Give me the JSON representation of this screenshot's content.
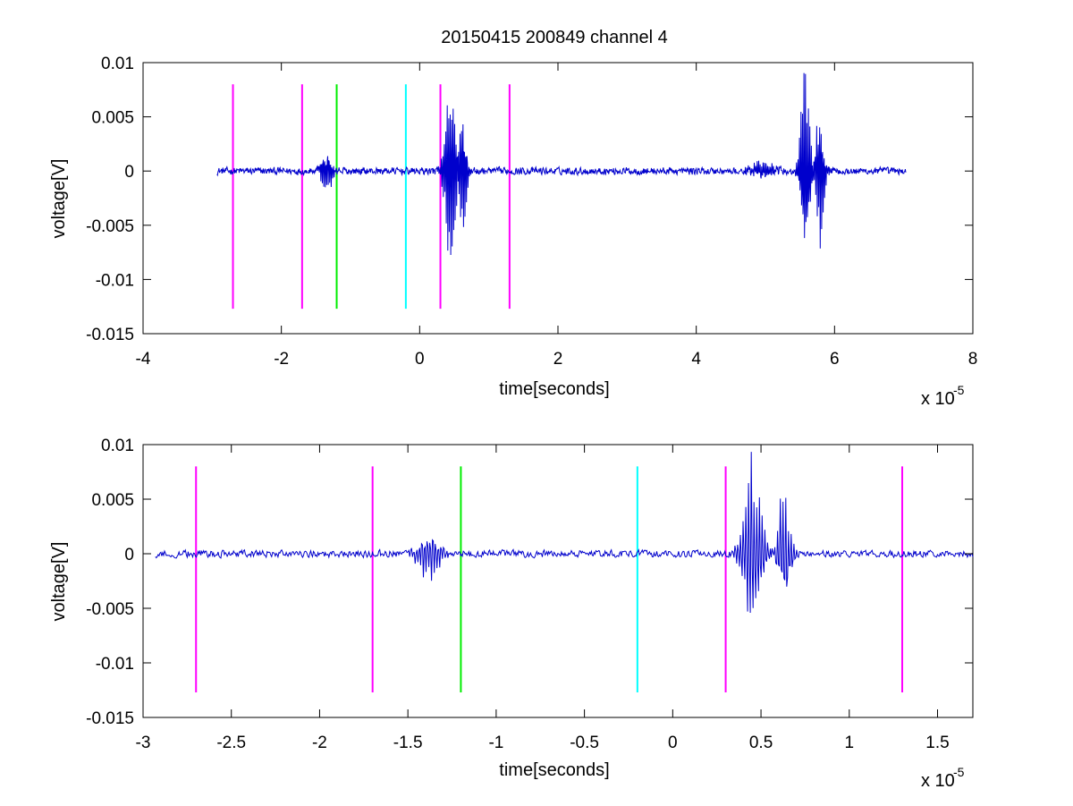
{
  "figure": {
    "title": "20150415 200849 channel 4"
  },
  "chart_data": [
    {
      "type": "line",
      "title": "20150415 200849 channel 4",
      "xlabel": "time[seconds]",
      "ylabel": "voltage[V]",
      "x_exponent_label": "x 10",
      "x_exponent": "-5",
      "xlim": [
        -4,
        8
      ],
      "ylim": [
        -0.015,
        0.01
      ],
      "xticks": [
        -4,
        -2,
        0,
        2,
        4,
        6,
        8
      ],
      "xtick_labels": [
        "-4",
        "-2",
        "0",
        "2",
        "4",
        "6",
        "8"
      ],
      "yticks": [
        -0.015,
        -0.01,
        -0.005,
        0,
        0.005,
        0.01
      ],
      "ytick_labels": [
        "-0.015",
        "-0.01",
        "-0.005",
        "0",
        "0.005",
        "0.01"
      ],
      "series": [
        {
          "color": "#0000cc",
          "signal": {
            "x_start": -2.93,
            "x_end": 7.03
          }
        }
      ],
      "markers": [
        {
          "x": -2.7,
          "color": "#ff00ff",
          "y_top": 0.008,
          "y_bottom": -0.0127
        },
        {
          "x": -1.7,
          "color": "#ff00ff",
          "y_top": 0.008,
          "y_bottom": -0.0127
        },
        {
          "x": -1.2,
          "color": "#00ee00",
          "y_top": 0.008,
          "y_bottom": -0.0127
        },
        {
          "x": -0.2,
          "color": "#00ffff",
          "y_top": 0.008,
          "y_bottom": -0.0127
        },
        {
          "x": 0.3,
          "color": "#ff00ff",
          "y_top": 0.008,
          "y_bottom": -0.0127
        },
        {
          "x": 1.3,
          "color": "#ff00ff",
          "y_top": 0.008,
          "y_bottom": -0.0127
        }
      ],
      "bursts": [
        {
          "center": -1.35,
          "width": 0.12,
          "amp": 0.0018
        },
        {
          "center": 0.45,
          "width": 0.12,
          "amp": 0.0075
        },
        {
          "center": 0.62,
          "width": 0.08,
          "amp": 0.0055
        },
        {
          "center": 4.95,
          "width": 0.25,
          "amp": 0.0007
        },
        {
          "center": 5.58,
          "width": 0.1,
          "amp": 0.0075
        },
        {
          "center": 5.78,
          "width": 0.1,
          "amp": 0.0055
        }
      ]
    },
    {
      "type": "line",
      "xlabel": "time[seconds]",
      "ylabel": "voltage[V]",
      "x_exponent_label": "x 10",
      "x_exponent": "-5",
      "xlim": [
        -3.0,
        1.7
      ],
      "ylim": [
        -0.015,
        0.01
      ],
      "xticks": [
        -3,
        -2.5,
        -2,
        -1.5,
        -1,
        -0.5,
        0,
        0.5,
        1,
        1.5
      ],
      "xtick_labels": [
        "-3",
        "-2.5",
        "-2",
        "-1.5",
        "-1",
        "-0.5",
        "0",
        "0.5",
        "1",
        "1.5"
      ],
      "yticks": [
        -0.015,
        -0.01,
        -0.005,
        0,
        0.005,
        0.01
      ],
      "ytick_labels": [
        "-0.015",
        "-0.01",
        "-0.005",
        "0",
        "0.005",
        "0.01"
      ],
      "series": [
        {
          "color": "#0000cc",
          "signal": {
            "x_start": -2.93,
            "x_end": 1.7
          }
        }
      ],
      "markers": [
        {
          "x": -2.7,
          "color": "#ff00ff",
          "y_top": 0.008,
          "y_bottom": -0.0127
        },
        {
          "x": -1.7,
          "color": "#ff00ff",
          "y_top": 0.008,
          "y_bottom": -0.0127
        },
        {
          "x": -1.2,
          "color": "#00ee00",
          "y_top": 0.008,
          "y_bottom": -0.0127
        },
        {
          "x": -0.2,
          "color": "#00ffff",
          "y_top": 0.008,
          "y_bottom": -0.0127
        },
        {
          "x": 0.3,
          "color": "#ff00ff",
          "y_top": 0.008,
          "y_bottom": -0.0127
        },
        {
          "x": 1.3,
          "color": "#ff00ff",
          "y_top": 0.008,
          "y_bottom": -0.0127
        }
      ],
      "bursts": [
        {
          "center": -1.38,
          "width": 0.09,
          "amp": 0.0018
        },
        {
          "center": 0.45,
          "width": 0.08,
          "amp": 0.0075
        },
        {
          "center": 0.63,
          "width": 0.05,
          "amp": 0.0055
        }
      ]
    }
  ]
}
